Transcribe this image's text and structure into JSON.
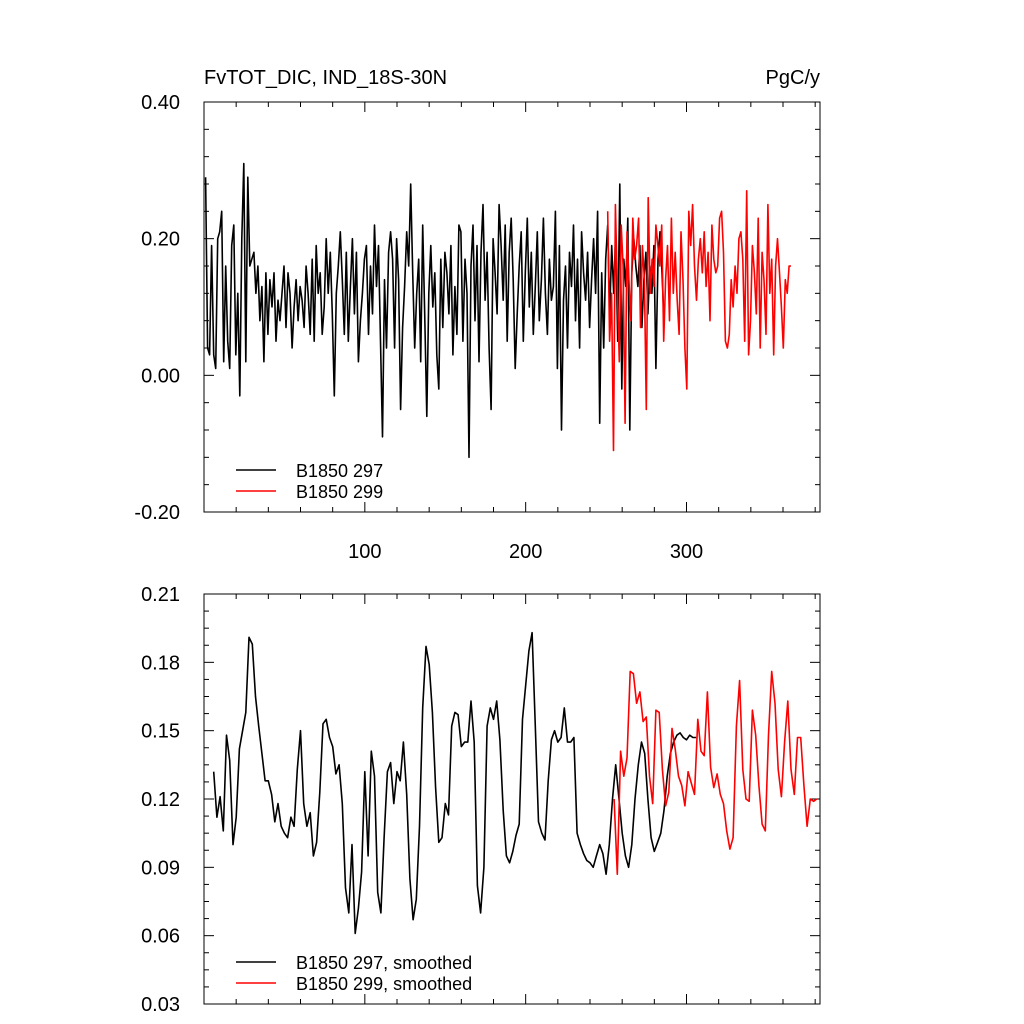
{
  "colors": {
    "series_297": "#000000",
    "series_299": "#ff0000",
    "frame": "#000000",
    "background": "#ffffff"
  },
  "top_title_left": "FvTOT_DIC, IND_18S-30N",
  "top_title_right": "PgC/y",
  "chart_data": [
    {
      "type": "line",
      "xlim": [
        0,
        383
      ],
      "ylim": [
        -0.2,
        0.4
      ],
      "x_ticks": [
        100,
        200,
        300
      ],
      "x_tick_labels": [
        "100",
        "200",
        "300"
      ],
      "y_ticks": [
        -0.2,
        0.0,
        0.2,
        0.4
      ],
      "y_tick_labels": [
        "-0.20",
        "0.00",
        "0.20",
        "0.40"
      ],
      "legend_position": "bottom-left",
      "grid": false,
      "series": [
        {
          "name": "B1850 297",
          "color": "#000000",
          "x0": 1,
          "dx": 1.25,
          "values": [
            0.29,
            0.04,
            0.03,
            0.19,
            0.03,
            0.01,
            0.2,
            0.21,
            0.24,
            0.02,
            0.16,
            0.05,
            0.01,
            0.19,
            0.22,
            0.03,
            0.12,
            -0.03,
            0.2,
            0.31,
            0.02,
            0.29,
            0.16,
            0.17,
            0.18,
            0.12,
            0.16,
            0.08,
            0.13,
            0.02,
            0.15,
            0.06,
            0.14,
            0.1,
            0.15,
            0.05,
            0.11,
            0.08,
            0.12,
            0.16,
            0.07,
            0.15,
            0.12,
            0.04,
            0.1,
            0.14,
            0.08,
            0.13,
            0.11,
            0.07,
            0.16,
            0.12,
            0.06,
            0.17,
            0.05,
            0.19,
            0.12,
            0.15,
            0.06,
            0.1,
            0.2,
            0.12,
            0.18,
            0.09,
            -0.03,
            0.12,
            0.16,
            0.21,
            0.14,
            0.06,
            0.18,
            0.05,
            0.13,
            0.2,
            0.09,
            0.18,
            0.02,
            0.08,
            0.12,
            0.17,
            0.19,
            0.06,
            0.16,
            0.09,
            0.22,
            0.13,
            0.19,
            0.05,
            -0.09,
            0.14,
            0.04,
            0.18,
            0.21,
            0.17,
            0.04,
            0.2,
            0.14,
            -0.05,
            0.07,
            0.13,
            0.21,
            0.16,
            0.28,
            0.15,
            0.04,
            0.12,
            0.17,
            0.02,
            0.22,
            0.09,
            -0.06,
            0.12,
            0.19,
            0.1,
            0.15,
            0.03,
            -0.02,
            0.17,
            0.07,
            0.18,
            0.15,
            0.09,
            0.19,
            0.03,
            0.13,
            0.06,
            0.22,
            0.21,
            0.05,
            0.17,
            0.12,
            -0.12,
            0.16,
            0.22,
            0.08,
            0.19,
            0.02,
            0.18,
            0.25,
            0.11,
            0.18,
            0.04,
            -0.05,
            0.2,
            0.15,
            0.09,
            0.25,
            0.19,
            0.11,
            0.22,
            0.05,
            0.18,
            0.23,
            0.14,
            0.01,
            0.09,
            0.16,
            0.21,
            0.05,
            0.15,
            0.23,
            0.1,
            0.18,
            0.06,
            0.13,
            0.21,
            0.08,
            0.14,
            0.23,
            0.12,
            0.06,
            0.17,
            0.11,
            0.13,
            0.24,
            0.01,
            0.19,
            -0.08,
            0.11,
            0.16,
            0.04,
            0.18,
            0.13,
            0.22,
            0.08,
            0.17,
            0.04,
            0.21,
            0.15,
            0.11,
            0.18,
            0.07,
            0.14,
            0.2,
            0.12,
            0.24,
            -0.07,
            0.15,
            0.04,
            0.17,
            0.22,
            0.09,
            0.19,
            0.12,
            0.21,
            0.05,
            0.28,
            -0.02,
            0.17,
            0.13,
            0.23,
            -0.08,
            0.15,
            0.2,
            0.16,
            0.13,
            0.19,
            0.07,
            0.14,
            0.18,
            0.09,
            0.16,
            0.12,
            0.19,
            0.01,
            0.17,
            0.21,
            0.15,
            0.08
          ]
        },
        {
          "name": "B1850 299",
          "color": "#ff0000",
          "x0": 251,
          "dx": 1.2,
          "values": [
            0.24,
            0.05,
            0.12,
            -0.11,
            0.25,
            0.13,
            0.02,
            0.22,
            0.16,
            -0.07,
            0.21,
            0.14,
            0.08,
            0.23,
            0.17,
            0.19,
            0.23,
            0.07,
            0.19,
            0.14,
            -0.05,
            0.26,
            0.12,
            0.17,
            0.13,
            0.22,
            0.19,
            0.16,
            0.22,
            0.05,
            0.14,
            0.19,
            0.08,
            0.23,
            0.12,
            0.18,
            0.11,
            0.06,
            0.21,
            0.14,
            0.04,
            -0.02,
            0.24,
            0.19,
            0.25,
            0.16,
            0.11,
            0.17,
            0.2,
            0.15,
            0.21,
            0.13,
            0.18,
            0.08,
            0.22,
            0.17,
            0.15,
            0.16,
            0.23,
            0.24,
            0.18,
            0.05,
            0.04,
            0.06,
            0.14,
            0.1,
            0.16,
            0.12,
            0.2,
            0.21,
            0.17,
            0.05,
            0.27,
            0.03,
            0.08,
            0.19,
            0.15,
            0.09,
            0.23,
            0.04,
            0.18,
            0.14,
            0.06,
            0.25,
            0.12,
            0.17,
            0.03,
            0.16,
            0.2,
            0.15,
            0.1,
            0.04,
            0.14,
            0.12,
            0.16,
            0.16
          ]
        }
      ]
    },
    {
      "type": "line",
      "xlim": [
        0,
        383
      ],
      "ylim": [
        0.03,
        0.21
      ],
      "x_ticks": [
        100,
        200,
        300
      ],
      "y_ticks": [
        0.03,
        0.06,
        0.09,
        0.12,
        0.15,
        0.18,
        0.21
      ],
      "y_tick_labels": [
        "0.03",
        "0.06",
        "0.09",
        "0.12",
        "0.15",
        "0.18",
        "0.21"
      ],
      "legend_position": "bottom-left",
      "grid": false,
      "series": [
        {
          "name": "B1850 297, smoothed",
          "color": "#000000",
          "x": [
            6,
            8,
            10,
            12,
            14,
            16,
            18,
            20,
            22,
            24,
            26,
            28,
            30,
            32,
            34,
            36,
            38,
            40,
            42,
            44,
            46,
            48,
            50,
            52,
            54,
            56,
            58,
            60,
            62,
            64,
            66,
            68,
            70,
            72,
            74,
            76,
            78,
            80,
            82,
            84,
            86,
            88,
            90,
            92,
            94,
            96,
            98,
            100,
            102,
            104,
            106,
            108,
            110,
            112,
            114,
            116,
            118,
            120,
            122,
            124,
            126,
            128,
            130,
            132,
            134,
            136,
            138,
            140,
            142,
            144,
            146,
            148,
            150,
            152,
            154,
            156,
            158,
            160,
            162,
            164,
            166,
            168,
            170,
            172,
            174,
            176,
            178,
            180,
            182,
            184,
            186,
            188,
            190,
            192,
            194,
            196,
            198,
            200,
            202,
            204,
            206,
            208,
            210,
            212,
            214,
            216,
            218,
            220,
            222,
            224,
            226,
            228,
            230,
            232,
            234,
            236,
            238,
            240,
            242,
            244,
            246,
            248,
            250,
            252,
            254,
            256,
            258,
            260,
            262,
            264,
            266,
            268,
            270,
            272,
            274,
            276,
            278,
            280,
            282,
            284,
            286,
            288,
            290,
            292,
            294,
            296,
            298,
            300,
            302,
            304,
            306
          ],
          "values": [
            0.132,
            0.112,
            0.121,
            0.106,
            0.148,
            0.137,
            0.1,
            0.112,
            0.142,
            0.15,
            0.158,
            0.191,
            0.188,
            0.165,
            0.152,
            0.14,
            0.128,
            0.128,
            0.122,
            0.11,
            0.118,
            0.108,
            0.105,
            0.103,
            0.112,
            0.108,
            0.133,
            0.15,
            0.118,
            0.108,
            0.114,
            0.095,
            0.101,
            0.123,
            0.153,
            0.155,
            0.147,
            0.143,
            0.131,
            0.135,
            0.118,
            0.081,
            0.07,
            0.1,
            0.061,
            0.072,
            0.088,
            0.132,
            0.095,
            0.141,
            0.13,
            0.079,
            0.07,
            0.103,
            0.132,
            0.136,
            0.118,
            0.132,
            0.128,
            0.145,
            0.122,
            0.085,
            0.067,
            0.076,
            0.108,
            0.16,
            0.187,
            0.179,
            0.158,
            0.125,
            0.101,
            0.103,
            0.118,
            0.113,
            0.152,
            0.158,
            0.157,
            0.143,
            0.145,
            0.145,
            0.163,
            0.145,
            0.082,
            0.07,
            0.09,
            0.152,
            0.16,
            0.155,
            0.163,
            0.146,
            0.115,
            0.095,
            0.092,
            0.097,
            0.104,
            0.109,
            0.155,
            0.17,
            0.185,
            0.193,
            0.152,
            0.11,
            0.105,
            0.102,
            0.128,
            0.146,
            0.15,
            0.145,
            0.147,
            0.16,
            0.145,
            0.145,
            0.147,
            0.105,
            0.1,
            0.096,
            0.093,
            0.092,
            0.09,
            0.095,
            0.1,
            0.096,
            0.087,
            0.1,
            0.12,
            0.135,
            0.12,
            0.105,
            0.095,
            0.09,
            0.1,
            0.12,
            0.135,
            0.145,
            0.14,
            0.12,
            0.103,
            0.097,
            0.101,
            0.105,
            0.115,
            0.13,
            0.14,
            0.145,
            0.148,
            0.149,
            0.147,
            0.146,
            0.148,
            0.147,
            0.147
          ]
        },
        {
          "name": "B1850 299, smoothed",
          "color": "#ff0000",
          "x": [
            255,
            257,
            259,
            261,
            263,
            265,
            267,
            269,
            271,
            273,
            275,
            277,
            279,
            281,
            283,
            285,
            287,
            289,
            291,
            293,
            295,
            297,
            299,
            301,
            303,
            305,
            307,
            309,
            311,
            313,
            315,
            317,
            319,
            321,
            323,
            325,
            327,
            329,
            331,
            333,
            335,
            337,
            339,
            341,
            343,
            345,
            347,
            349,
            351,
            353,
            355,
            357,
            359,
            361,
            363,
            365,
            367,
            369,
            371,
            373,
            375,
            377,
            379,
            381
          ],
          "values": [
            0.12,
            0.087,
            0.141,
            0.13,
            0.138,
            0.176,
            0.175,
            0.162,
            0.167,
            0.154,
            0.156,
            0.13,
            0.118,
            0.159,
            0.158,
            0.133,
            0.117,
            0.123,
            0.151,
            0.142,
            0.13,
            0.126,
            0.117,
            0.132,
            0.127,
            0.122,
            0.155,
            0.141,
            0.139,
            0.167,
            0.134,
            0.125,
            0.131,
            0.122,
            0.118,
            0.106,
            0.098,
            0.103,
            0.152,
            0.172,
            0.133,
            0.12,
            0.119,
            0.159,
            0.148,
            0.126,
            0.109,
            0.106,
            0.148,
            0.176,
            0.162,
            0.133,
            0.121,
            0.145,
            0.163,
            0.133,
            0.122,
            0.147,
            0.147,
            0.126,
            0.108,
            0.12,
            0.119,
            0.12
          ]
        }
      ]
    }
  ]
}
